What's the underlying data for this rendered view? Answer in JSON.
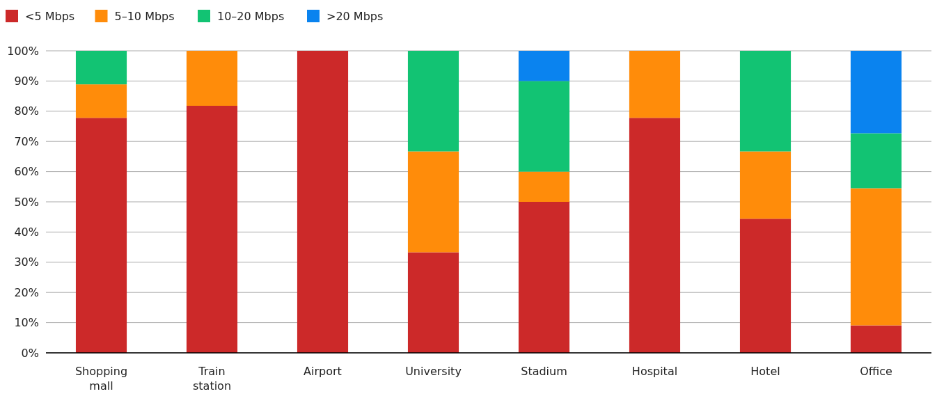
{
  "chart_data": {
    "type": "bar",
    "stacked": true,
    "categories": [
      "Shopping mall",
      "Train station",
      "Airport",
      "University",
      "Stadium",
      "Hospital",
      "Hotel",
      "Office"
    ],
    "series": [
      {
        "name": "<5 Mbps",
        "color": "#cc2929",
        "values": [
          77.8,
          81.8,
          100,
          33.3,
          50,
          77.8,
          44.4,
          9.1
        ]
      },
      {
        "name": "5–10 Mbps",
        "color": "#ff8c0a",
        "values": [
          11.1,
          18.2,
          0,
          33.4,
          10,
          22.2,
          22.3,
          45.4
        ]
      },
      {
        "name": "10–20 Mbps",
        "color": "#12c373",
        "values": [
          11.1,
          0,
          0,
          33.3,
          30,
          0,
          33.3,
          18.2
        ]
      },
      {
        "name": ">20 Mbps",
        "color": "#0a83ef",
        "values": [
          0,
          0,
          0,
          0,
          10,
          0,
          0,
          27.3
        ]
      }
    ],
    "ylim": [
      0,
      100
    ],
    "yticks": [
      {
        "value": 0,
        "label": "0%"
      },
      {
        "value": 10,
        "label": "10%"
      },
      {
        "value": 20,
        "label": "20%"
      },
      {
        "value": 30,
        "label": "30%"
      },
      {
        "value": 40,
        "label": "40%"
      },
      {
        "value": 50,
        "label": "50%"
      },
      {
        "value": 60,
        "label": "60%"
      },
      {
        "value": 70,
        "label": "70%"
      },
      {
        "value": 80,
        "label": "80%"
      },
      {
        "value": 90,
        "label": "90%"
      },
      {
        "value": 100,
        "label": "100%"
      }
    ],
    "grid": "y",
    "legend": "top left"
  }
}
